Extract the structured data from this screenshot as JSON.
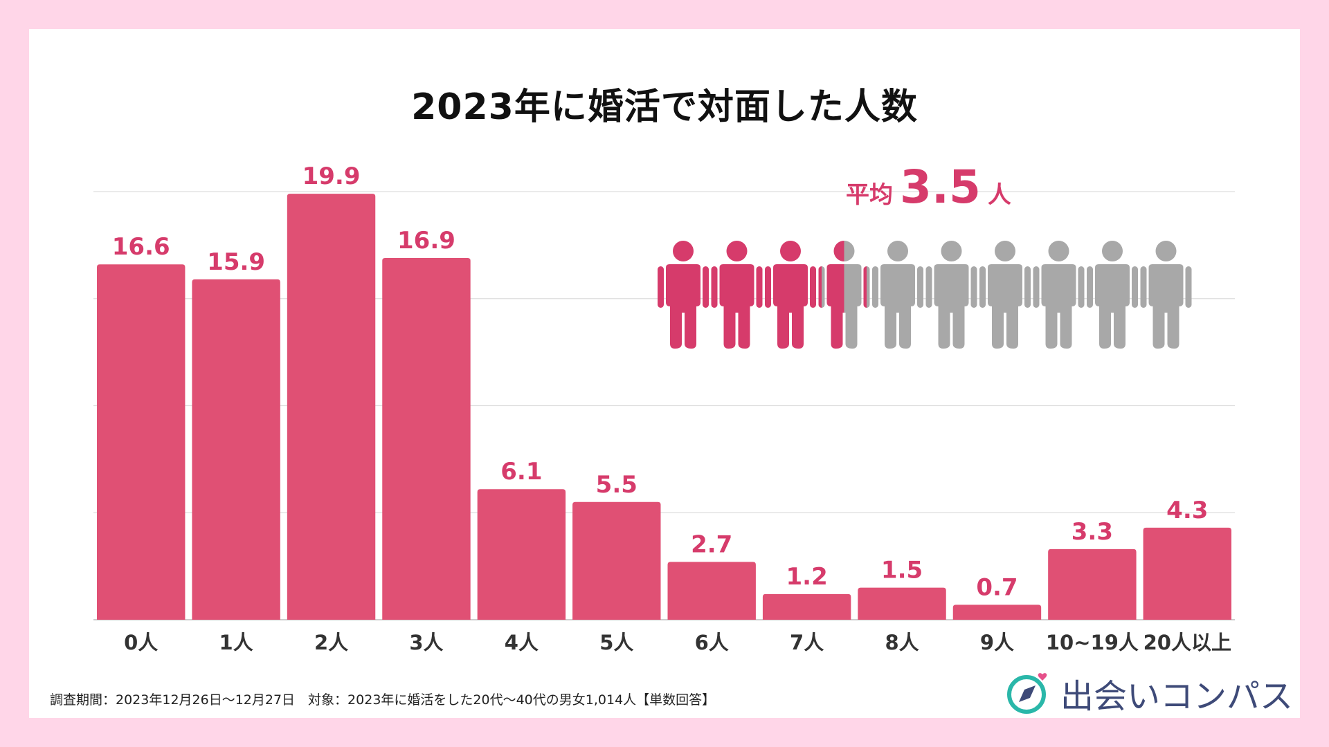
{
  "title": "2023年に婚活で対面した人数",
  "average": {
    "label": "平均",
    "value": "3.5",
    "unit": "人",
    "people_total": 10,
    "people_filled": 3.5
  },
  "footnote": "調査期間：2023年12月26日〜12月27日　対象：2023年に婚活をした20代〜40代の男女1,014人【単数回答】",
  "logo_text": "出会いコンパス",
  "colors": {
    "bar": "#e05074",
    "label": "#d63b6b",
    "grid": "#dddddd",
    "person_filled": "#d63b6b",
    "person_empty": "#a8a8a8",
    "axis_text": "#333333"
  },
  "chart_data": {
    "type": "bar",
    "title": "2023年に婚活で対面した人数",
    "categories": [
      "0人",
      "1人",
      "2人",
      "3人",
      "4人",
      "5人",
      "6人",
      "7人",
      "8人",
      "9人",
      "10~19人",
      "20人以上"
    ],
    "values": [
      16.6,
      15.9,
      19.9,
      16.9,
      6.1,
      5.5,
      2.7,
      1.2,
      1.5,
      0.7,
      3.3,
      4.3
    ],
    "value_labels": [
      "16.6",
      "15.9",
      "19.9",
      "16.9",
      "6.1",
      "5.5",
      "2.7",
      "1.2",
      "1.5",
      "0.7",
      "3.3",
      "4.3"
    ],
    "ylim": [
      0,
      20
    ],
    "grid_step": 5,
    "xlabel": "",
    "ylabel": ""
  }
}
